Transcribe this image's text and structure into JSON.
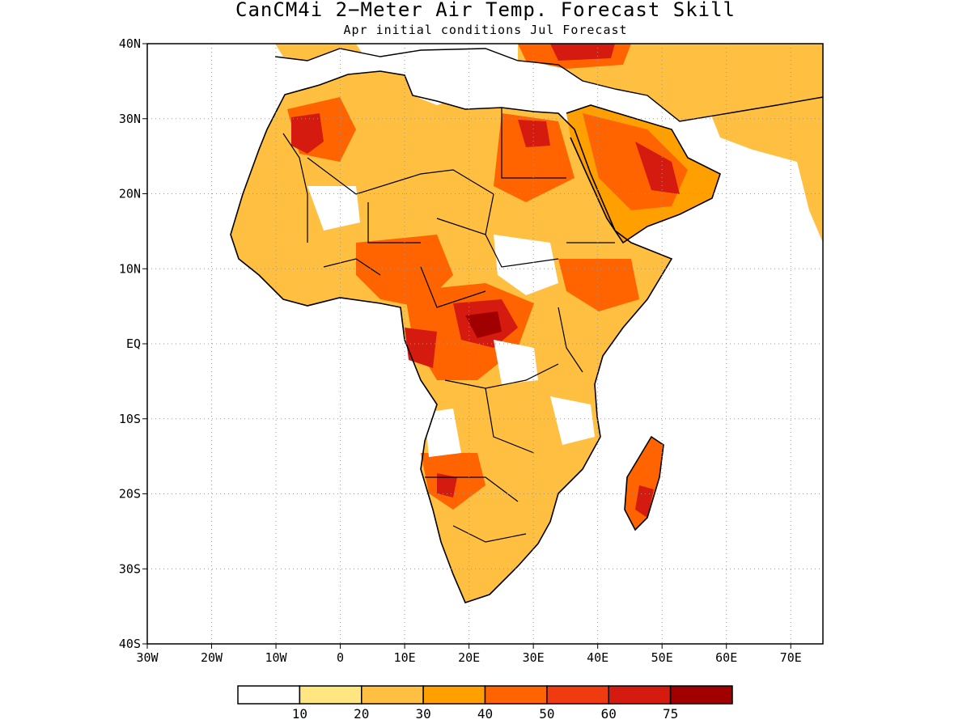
{
  "title": "CanCM4i 2−Meter Air Temp. Forecast Skill",
  "subtitle": "Apr initial conditions   Jul Forecast",
  "map": {
    "lat_labels": [
      "40N",
      "30N",
      "20N",
      "10N",
      "EQ",
      "10S",
      "20S",
      "30S",
      "40S"
    ],
    "lon_labels": [
      "30W",
      "20W",
      "10W",
      "0",
      "10E",
      "20E",
      "30E",
      "40E",
      "50E",
      "60E",
      "70E"
    ],
    "lat_range": [
      -40,
      40
    ],
    "lon_range": [
      -30,
      75
    ],
    "grid": true
  },
  "legend": {
    "tick_labels": [
      "10",
      "20",
      "30",
      "40",
      "50",
      "60",
      "75"
    ],
    "colors": [
      "#ffffff",
      "#ffe680",
      "#ffbf40",
      "#ffa000",
      "#ff6400",
      "#f03a10",
      "#d51a10",
      "#a00000"
    ]
  },
  "colors": {
    "skill_low": "#ffbf40",
    "skill_mid": "#ff6400",
    "skill_high": "#d51a10",
    "skill_max": "#a00000"
  }
}
